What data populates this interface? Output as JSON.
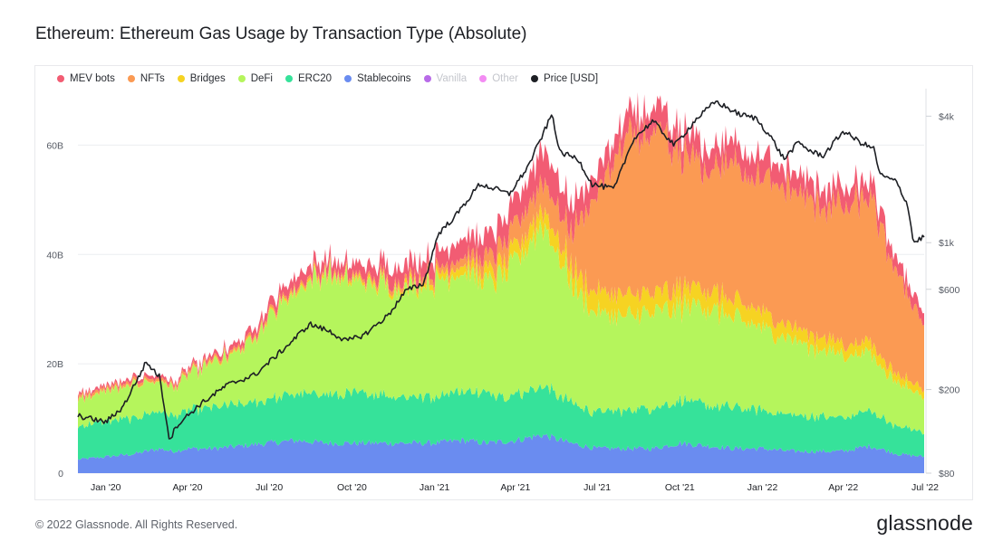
{
  "title": "Ethereum: Ethereum Gas Usage by Transaction Type (Absolute)",
  "footer": "© 2022 Glassnode. All Rights Reserved.",
  "brand": "glassnode",
  "watermark": "glassnode",
  "chart_data": {
    "type": "area",
    "stacked": true,
    "legend_position": "top-left",
    "legend": [
      {
        "name": "MEV bots",
        "color": "#f25c73",
        "enabled": true
      },
      {
        "name": "NFTs",
        "color": "#fb9a53",
        "enabled": true
      },
      {
        "name": "Bridges",
        "color": "#f6d322",
        "enabled": true
      },
      {
        "name": "DeFi",
        "color": "#b5f55c",
        "enabled": true
      },
      {
        "name": "ERC20",
        "color": "#36e29a",
        "enabled": true
      },
      {
        "name": "Stablecoins",
        "color": "#6a8cf0",
        "enabled": true
      },
      {
        "name": "Vanilla",
        "color": "#b05be6",
        "enabled": false
      },
      {
        "name": "Other",
        "color": "#f27ff2",
        "enabled": false
      },
      {
        "name": "Price [USD]",
        "color": "#1d1f24",
        "enabled": true
      }
    ],
    "x_ticks": [
      "Jan '20",
      "Apr '20",
      "Jul '20",
      "Oct '20",
      "Jan '21",
      "Apr '21",
      "Jul '21",
      "Oct '21",
      "Jan '22",
      "Apr '22",
      "Jul '22"
    ],
    "x_tick_dates": [
      "2020-01-01",
      "2020-04-01",
      "2020-07-01",
      "2020-10-01",
      "2021-01-01",
      "2021-04-01",
      "2021-07-01",
      "2021-10-01",
      "2022-01-01",
      "2022-04-01",
      "2022-07-01"
    ],
    "x_range": [
      "2019-12-01",
      "2022-06-30"
    ],
    "y_left": {
      "ticks": [
        "0",
        "20B",
        "40B",
        "60B"
      ],
      "values": [
        0,
        20,
        40,
        60
      ],
      "unit": "B",
      "range": [
        0,
        70
      ]
    },
    "y_right": {
      "scale": "log",
      "ticks": [
        "$80",
        "$200",
        "$600",
        "$1k",
        "$4k"
      ],
      "values": [
        80,
        200,
        600,
        1000,
        4000
      ],
      "range": [
        80,
        5300
      ]
    },
    "grid": true,
    "x": [
      "2019-12-01",
      "2020-01-01",
      "2020-02-01",
      "2020-03-01",
      "2020-03-15",
      "2020-04-01",
      "2020-05-01",
      "2020-06-01",
      "2020-07-01",
      "2020-08-01",
      "2020-09-01",
      "2020-10-01",
      "2020-11-01",
      "2020-12-01",
      "2021-01-01",
      "2021-02-01",
      "2021-03-01",
      "2021-04-01",
      "2021-05-01",
      "2021-06-01",
      "2021-07-01",
      "2021-08-01",
      "2021-09-01",
      "2021-10-01",
      "2021-11-01",
      "2021-12-01",
      "2022-01-01",
      "2022-02-01",
      "2022-03-01",
      "2022-04-01",
      "2022-05-01",
      "2022-06-01",
      "2022-06-30"
    ],
    "series": [
      {
        "name": "Stablecoins",
        "color": "#6a8cf0",
        "values": [
          2.5,
          3.0,
          3.5,
          4.5,
          4.0,
          4.5,
          4.5,
          5.0,
          5.5,
          6.0,
          5.5,
          5.5,
          5.5,
          5.5,
          5.5,
          6.0,
          5.5,
          6.0,
          7.0,
          5.5,
          4.5,
          4.5,
          4.5,
          5.5,
          5.0,
          4.5,
          4.5,
          4.0,
          4.0,
          4.0,
          5.0,
          3.5,
          3.0
        ]
      },
      {
        "name": "ERC20",
        "color": "#36e29a",
        "values": [
          6.0,
          6.5,
          6.5,
          7.0,
          6.5,
          7.0,
          7.5,
          7.5,
          8.0,
          8.5,
          9.0,
          9.0,
          9.0,
          8.5,
          8.5,
          9.0,
          9.0,
          8.5,
          9.0,
          7.5,
          6.5,
          7.0,
          7.5,
          8.0,
          7.5,
          7.5,
          7.0,
          6.5,
          6.5,
          6.0,
          6.5,
          5.0,
          4.5
        ]
      },
      {
        "name": "DeFi",
        "color": "#b5f55c",
        "values": [
          5.0,
          5.5,
          6.0,
          5.5,
          5.0,
          6.5,
          8.0,
          10.0,
          15.0,
          19.0,
          22.0,
          20.0,
          20.0,
          20.0,
          21.0,
          22.0,
          20.0,
          24.0,
          30.0,
          22.0,
          18.0,
          17.0,
          17.5,
          17.0,
          18.0,
          16.0,
          15.0,
          14.0,
          12.5,
          11.5,
          10.5,
          8.0,
          6.5
        ]
      },
      {
        "name": "Bridges",
        "color": "#f6d322",
        "values": [
          0.1,
          0.1,
          0.1,
          0.1,
          0.1,
          0.1,
          0.2,
          0.2,
          0.3,
          0.4,
          0.5,
          0.5,
          0.6,
          0.8,
          1.0,
          1.5,
          2.0,
          2.5,
          3.0,
          3.0,
          4.0,
          4.0,
          3.5,
          3.5,
          3.5,
          3.0,
          3.0,
          2.5,
          2.5,
          2.0,
          2.0,
          1.5,
          1.5
        ]
      },
      {
        "name": "NFTs",
        "color": "#fb9a53",
        "values": [
          0.5,
          0.5,
          0.5,
          0.5,
          0.5,
          0.5,
          0.5,
          0.5,
          0.5,
          0.5,
          0.5,
          0.5,
          0.7,
          0.8,
          1.0,
          1.5,
          2.5,
          4.0,
          5.0,
          6.0,
          18.0,
          28.0,
          29.0,
          24.0,
          22.0,
          25.0,
          24.0,
          25.0,
          24.0,
          25.0,
          26.0,
          18.0,
          12.0
        ]
      },
      {
        "name": "MEV bots",
        "color": "#f25c73",
        "values": [
          0.5,
          0.5,
          0.6,
          0.6,
          0.5,
          0.6,
          0.8,
          1.0,
          1.5,
          2.0,
          2.0,
          2.0,
          2.5,
          3.0,
          3.0,
          3.5,
          4.0,
          4.5,
          6.0,
          5.0,
          4.0,
          4.0,
          4.5,
          4.0,
          4.0,
          4.0,
          4.0,
          3.5,
          3.5,
          3.5,
          3.0,
          2.5,
          2.0
        ]
      }
    ],
    "price": {
      "name": "Price [USD]",
      "color": "#1d1f24",
      "axis": "right",
      "x": [
        "2019-12-01",
        "2020-01-01",
        "2020-01-20",
        "2020-02-15",
        "2020-03-01",
        "2020-03-12",
        "2020-03-20",
        "2020-04-15",
        "2020-05-15",
        "2020-06-15",
        "2020-07-20",
        "2020-08-15",
        "2020-09-05",
        "2020-09-25",
        "2020-10-15",
        "2020-11-10",
        "2020-11-30",
        "2020-12-20",
        "2021-01-05",
        "2021-01-25",
        "2021-02-20",
        "2021-03-10",
        "2021-03-25",
        "2021-04-15",
        "2021-05-12",
        "2021-05-20",
        "2021-06-10",
        "2021-06-25",
        "2021-07-20",
        "2021-08-10",
        "2021-09-01",
        "2021-09-25",
        "2021-10-20",
        "2021-11-10",
        "2021-12-05",
        "2021-12-25",
        "2022-01-10",
        "2022-01-25",
        "2022-02-10",
        "2022-02-25",
        "2022-03-10",
        "2022-04-01",
        "2022-04-20",
        "2022-05-05",
        "2022-05-12",
        "2022-05-30",
        "2022-06-12",
        "2022-06-18",
        "2022-06-30"
      ],
      "values": [
        150,
        140,
        165,
        270,
        230,
        115,
        135,
        170,
        210,
        235,
        320,
        410,
        380,
        340,
        365,
        450,
        590,
        640,
        1100,
        1350,
        1900,
        1800,
        1700,
        2300,
        4100,
        2700,
        2500,
        1900,
        1800,
        3100,
        3800,
        2900,
        3900,
        4700,
        4100,
        3900,
        3200,
        2500,
        3000,
        2700,
        2600,
        3400,
        3000,
        2800,
        2100,
        1950,
        1500,
        1000,
        1070
      ]
    }
  }
}
